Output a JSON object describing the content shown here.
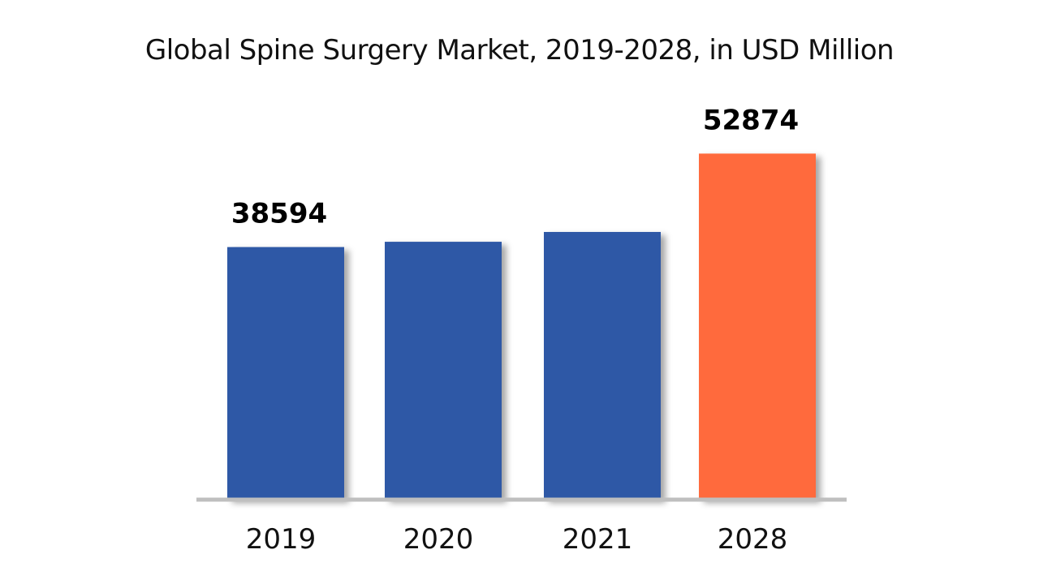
{
  "chart_data": {
    "type": "bar",
    "title": "Global Spine Surgery Market, 2019-2028, in USD Million",
    "categories": [
      "2019",
      "2020",
      "2021",
      "2028"
    ],
    "values": [
      38594,
      39400,
      40900,
      52874
    ],
    "data_labels": [
      "38594",
      "",
      "",
      "52874"
    ],
    "bar_colors": [
      "#2e58a6",
      "#2e58a6",
      "#2e58a6",
      "#ff6b3d"
    ],
    "baseline_color": "#bfbfbf",
    "ylim": [
      0,
      58000
    ],
    "grid": false,
    "legend": "none",
    "xlabel": "",
    "ylabel": ""
  }
}
